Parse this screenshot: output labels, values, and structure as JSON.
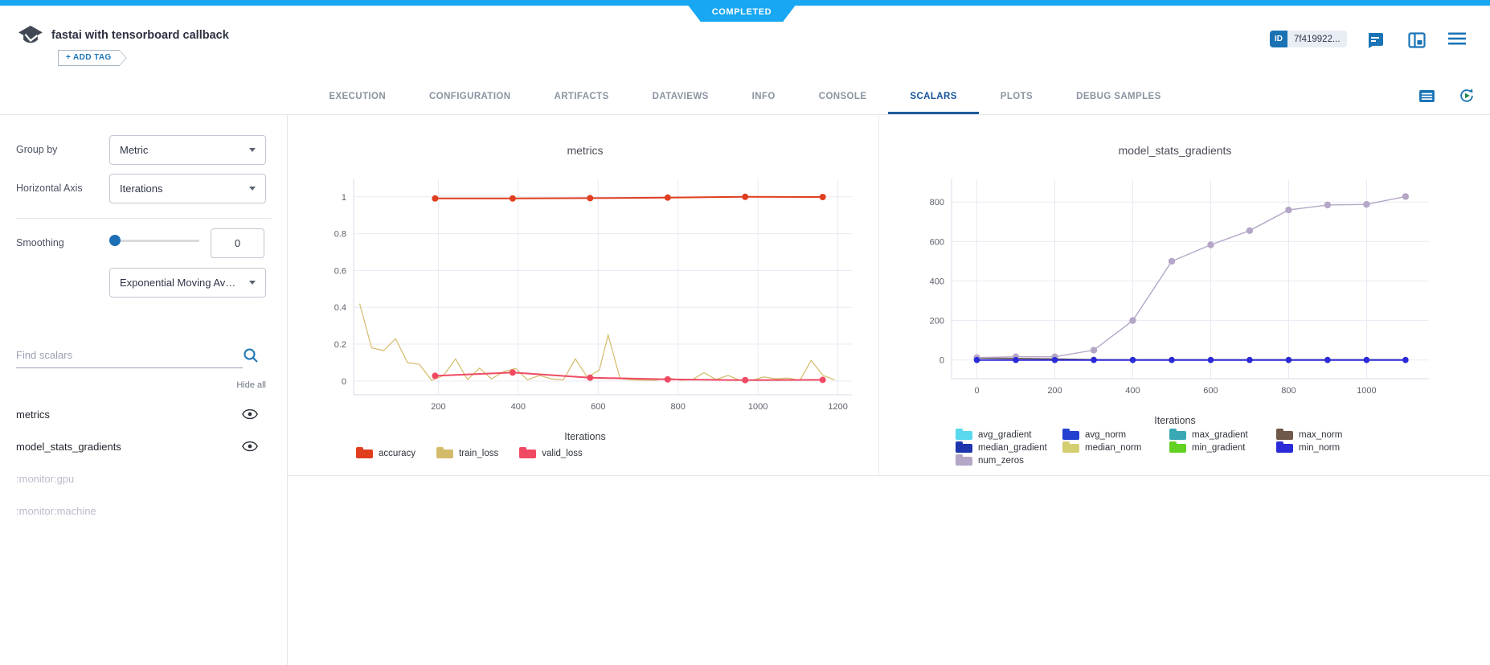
{
  "app": {
    "status": "COMPLETED",
    "title": "fastai with tensorboard callback",
    "add_tag": "+ ADD TAG",
    "id_badge": {
      "label": "ID",
      "value": "7f419922..."
    },
    "accent_blue": "#17a7f3",
    "icon_blue": "#1b74b6"
  },
  "tabs": {
    "items": [
      "EXECUTION",
      "CONFIGURATION",
      "ARTIFACTS",
      "DATAVIEWS",
      "INFO",
      "CONSOLE",
      "SCALARS",
      "PLOTS",
      "DEBUG SAMPLES"
    ],
    "active": "SCALARS"
  },
  "sidebar": {
    "group_by_label": "Group by",
    "group_by_value": "Metric",
    "horizontal_axis_label": "Horizontal Axis",
    "horizontal_axis_value": "Iterations",
    "smoothing_label": "Smoothing",
    "smoothing_value": "0",
    "smoothing_method": "Exponential Moving Av…",
    "search_placeholder": "Find scalars",
    "hide_all": "Hide all",
    "scalars": [
      {
        "label": "metrics",
        "eye": true,
        "dimmed": false
      },
      {
        "label": "model_stats_gradients",
        "eye": true,
        "dimmed": false
      },
      {
        "label": ":monitor:gpu",
        "eye": false,
        "dimmed": true
      },
      {
        "label": ":monitor:machine",
        "eye": false,
        "dimmed": true
      }
    ]
  },
  "chart_data": [
    {
      "type": "line",
      "title": "metrics",
      "xlabel": "Iterations",
      "xlim": [
        -12,
        1235
      ],
      "ylim": [
        -0.075,
        1.095
      ],
      "xticks": [
        200,
        400,
        600,
        800,
        1000,
        1200
      ],
      "yticks": [
        0,
        0.2,
        0.4,
        0.6,
        0.8,
        1
      ],
      "grid": true,
      "legend_position": "bottom-left",
      "series": [
        {
          "name": "train_loss",
          "color": "#d3bb69",
          "markers": false,
          "width": 1.2,
          "x": [
            3,
            33,
            63,
            93,
            123,
            153,
            183,
            213,
            243,
            273,
            303,
            333,
            363,
            393,
            423,
            453,
            483,
            513,
            543,
            573,
            603,
            625,
            655,
            685,
            715,
            745,
            775,
            805,
            835,
            865,
            895,
            925,
            955,
            985,
            1015,
            1045,
            1075,
            1105,
            1133,
            1163,
            1192
          ],
          "y": [
            0.42,
            0.18,
            0.165,
            0.23,
            0.1,
            0.09,
            0.004,
            0.03,
            0.12,
            0.008,
            0.07,
            0.012,
            0.05,
            0.068,
            0.006,
            0.03,
            0.012,
            0.006,
            0.12,
            0.02,
            0.06,
            0.25,
            0.012,
            0.006,
            0.004,
            0.004,
            0.018,
            0.004,
            0.006,
            0.045,
            0.008,
            0.03,
            0.004,
            0.004,
            0.022,
            0.012,
            0.016,
            0.004,
            0.112,
            0.03,
            0.006
          ]
        },
        {
          "name": "valid_loss",
          "color": "#f04a63",
          "markers": true,
          "width": 2,
          "marker_r": 4,
          "x": [
            192,
            386,
            580,
            774,
            968,
            1162
          ],
          "y": [
            0.028,
            0.046,
            0.018,
            0.009,
            0.005,
            0.006
          ]
        },
        {
          "name": "accuracy",
          "color": "#e03e1f",
          "markers": true,
          "width": 2,
          "marker_r": 4,
          "x": [
            192,
            386,
            580,
            774,
            968,
            1162
          ],
          "y": [
            0.991,
            0.991,
            0.993,
            0.996,
            1.0,
            0.999
          ]
        }
      ],
      "legend": [
        {
          "label": "accuracy",
          "color": "#e03e1f"
        },
        {
          "label": "train_loss",
          "color": "#d3bb69"
        },
        {
          "label": "valid_loss",
          "color": "#f04a63"
        }
      ]
    },
    {
      "type": "line",
      "title": "model_stats_gradients",
      "xlabel": "Iterations",
      "xlim": [
        -65,
        1160
      ],
      "ylim": [
        -95,
        915
      ],
      "xticks": [
        0,
        200,
        400,
        600,
        800,
        1000
      ],
      "yticks": [
        0,
        200,
        400,
        600,
        800
      ],
      "grid": true,
      "legend_position": "bottom-grid",
      "series": [
        {
          "name": "avg_gradient",
          "color": "#59d8ee",
          "markers": true,
          "width": 1.5,
          "marker_r": 3.6,
          "x": [
            0,
            100,
            200,
            300,
            400,
            500,
            600,
            700,
            800,
            900,
            1000,
            1100
          ],
          "y": [
            0,
            0,
            0,
            0,
            0,
            0,
            0,
            0,
            0,
            0,
            0,
            0
          ]
        },
        {
          "name": "avg_norm",
          "color": "#2341cf",
          "markers": true,
          "width": 1.5,
          "marker_r": 3.6,
          "x": [
            0,
            100,
            200,
            300,
            400,
            500,
            600,
            700,
            800,
            900,
            1000,
            1100
          ],
          "y": [
            0,
            0,
            0,
            0,
            0,
            0,
            0,
            0,
            0,
            0,
            0,
            0
          ]
        },
        {
          "name": "max_gradient",
          "color": "#38a8b4",
          "markers": true,
          "width": 1.5,
          "marker_r": 3.6,
          "x": [
            0,
            100,
            200,
            300,
            400,
            500,
            600,
            700,
            800,
            900,
            1000,
            1100
          ],
          "y": [
            0,
            0,
            0,
            0,
            0,
            0,
            0,
            0,
            0,
            0,
            0,
            0
          ]
        },
        {
          "name": "median_gradient",
          "color": "#1d35ad",
          "markers": true,
          "width": 1.5,
          "marker_r": 3.6,
          "x": [
            0,
            100,
            200,
            300,
            400,
            500,
            600,
            700,
            800,
            900,
            1000,
            1100
          ],
          "y": [
            0,
            0,
            0,
            0,
            0,
            0,
            0,
            0,
            0,
            0,
            0,
            0
          ]
        },
        {
          "name": "median_norm",
          "color": "#d5ce70",
          "markers": true,
          "width": 1.5,
          "marker_r": 3.6,
          "x": [
            0,
            100,
            200,
            300,
            400,
            500,
            600,
            700,
            800,
            900,
            1000,
            1100
          ],
          "y": [
            0,
            0,
            0,
            0,
            0,
            0,
            0,
            0,
            0,
            0,
            0,
            0
          ]
        },
        {
          "name": "min_gradient",
          "color": "#63d122",
          "markers": true,
          "width": 1.5,
          "marker_r": 3.6,
          "x": [
            0,
            100,
            200,
            300,
            400,
            500,
            600,
            700,
            800,
            900,
            1000,
            1100
          ],
          "y": [
            0,
            0,
            0,
            0,
            0,
            0,
            0,
            0,
            0,
            0,
            0,
            0
          ]
        },
        {
          "name": "max_norm",
          "color": "#70594a",
          "markers": true,
          "width": 1.5,
          "marker_r": 3.6,
          "x": [
            0,
            100,
            200,
            300,
            400,
            500,
            600,
            700,
            800,
            900,
            1000,
            1100
          ],
          "y": [
            10,
            8,
            5,
            2,
            1,
            1,
            1,
            1,
            1,
            1,
            1,
            1
          ]
        },
        {
          "name": "num_zeros",
          "color": "#b4a6c6",
          "markers": true,
          "width": 1.4,
          "marker_r": 4.2,
          "x": [
            0,
            100,
            200,
            300,
            400,
            500,
            600,
            700,
            800,
            900,
            1000,
            1100
          ],
          "y": [
            12,
            16,
            16,
            50,
            200,
            500,
            583,
            655,
            760,
            785,
            788,
            828
          ]
        },
        {
          "name": "min_norm",
          "color": "#2b2ad9",
          "markers": true,
          "width": 2,
          "marker_r": 3.8,
          "x": [
            0,
            100,
            200,
            300,
            400,
            500,
            600,
            700,
            800,
            900,
            1000,
            1100
          ],
          "y": [
            0,
            0,
            0,
            0,
            0,
            0,
            0,
            0,
            0,
            0,
            0,
            0
          ]
        }
      ],
      "legend": [
        {
          "label": "avg_gradient",
          "color": "#59d8ee"
        },
        {
          "label": "avg_norm",
          "color": "#2341cf"
        },
        {
          "label": "max_gradient",
          "color": "#38a8b4"
        },
        {
          "label": "max_norm",
          "color": "#70594a"
        },
        {
          "label": "median_gradient",
          "color": "#1d35ad"
        },
        {
          "label": "median_norm",
          "color": "#d5ce70"
        },
        {
          "label": "min_gradient",
          "color": "#63d122"
        },
        {
          "label": "min_norm",
          "color": "#2b2ad9"
        },
        {
          "label": "num_zeros",
          "color": "#b4a6c6"
        }
      ]
    }
  ]
}
